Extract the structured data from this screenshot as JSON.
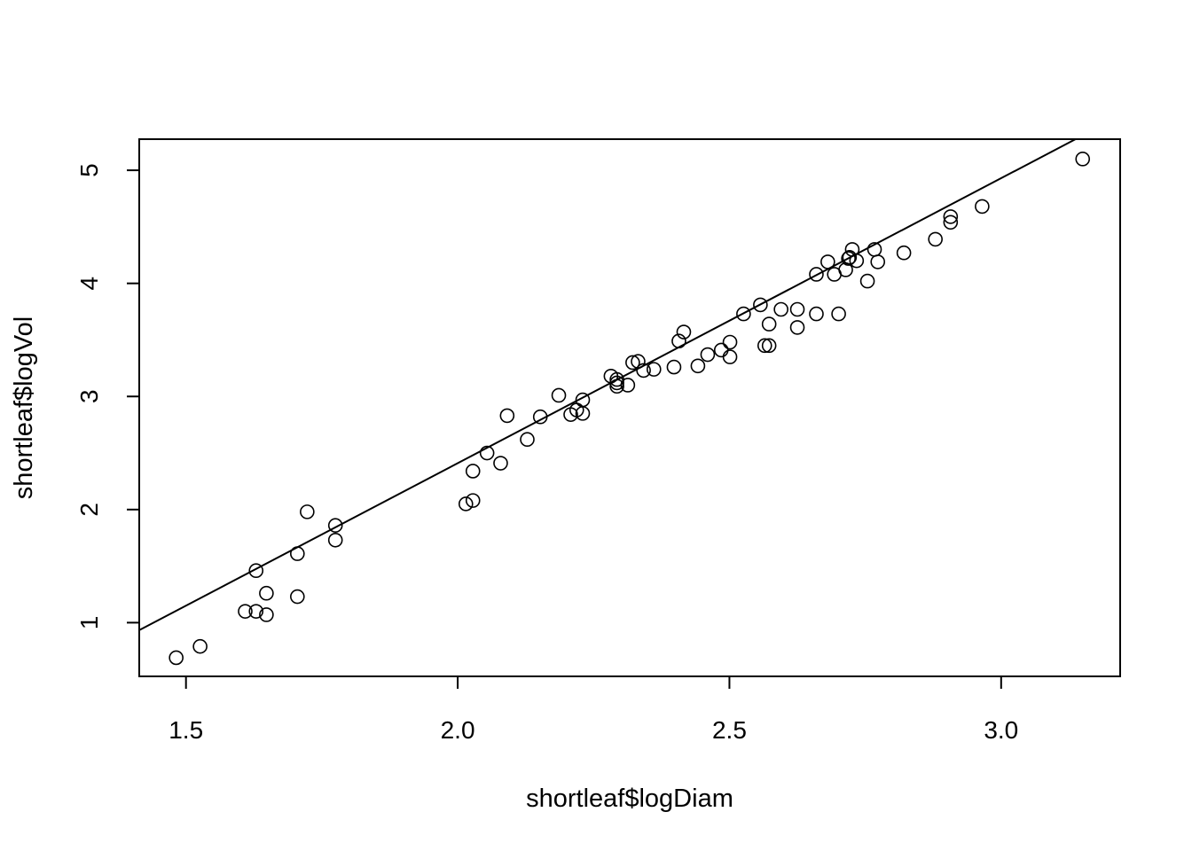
{
  "chart_data": {
    "type": "scatter",
    "xlabel": "shortleaf$logDiam",
    "ylabel": "shortleaf$logVol",
    "xlim": [
      1.414,
      3.219
    ],
    "ylim": [
      0.525,
      5.275
    ],
    "xticks": [
      1.5,
      2.0,
      2.5,
      3.0
    ],
    "xtick_labels": [
      "1.5",
      "2.0",
      "2.5",
      "3.0"
    ],
    "yticks": [
      1,
      2,
      3,
      4,
      5
    ],
    "ytick_labels": [
      "1",
      "2",
      "3",
      "4",
      "5"
    ],
    "grid": false,
    "regression_line": {
      "intercept": -2.63,
      "slope": 2.52
    },
    "points": [
      {
        "x": 1.482,
        "y": 0.69
      },
      {
        "x": 1.526,
        "y": 0.79
      },
      {
        "x": 1.609,
        "y": 1.1
      },
      {
        "x": 1.629,
        "y": 1.1
      },
      {
        "x": 1.648,
        "y": 1.07
      },
      {
        "x": 1.629,
        "y": 1.46
      },
      {
        "x": 1.648,
        "y": 1.26
      },
      {
        "x": 1.705,
        "y": 1.61
      },
      {
        "x": 1.705,
        "y": 1.23
      },
      {
        "x": 1.723,
        "y": 1.98
      },
      {
        "x": 1.775,
        "y": 1.86
      },
      {
        "x": 1.775,
        "y": 1.73
      },
      {
        "x": 2.015,
        "y": 2.05
      },
      {
        "x": 2.028,
        "y": 2.08
      },
      {
        "x": 2.028,
        "y": 2.34
      },
      {
        "x": 2.054,
        "y": 2.5
      },
      {
        "x": 2.079,
        "y": 2.41
      },
      {
        "x": 2.091,
        "y": 2.83
      },
      {
        "x": 2.128,
        "y": 2.62
      },
      {
        "x": 2.152,
        "y": 2.82
      },
      {
        "x": 2.186,
        "y": 3.01
      },
      {
        "x": 2.208,
        "y": 2.84
      },
      {
        "x": 2.219,
        "y": 2.88
      },
      {
        "x": 2.23,
        "y": 2.85
      },
      {
        "x": 2.23,
        "y": 2.97
      },
      {
        "x": 2.282,
        "y": 3.18
      },
      {
        "x": 2.293,
        "y": 3.15
      },
      {
        "x": 2.293,
        "y": 3.12
      },
      {
        "x": 2.293,
        "y": 3.09
      },
      {
        "x": 2.313,
        "y": 3.1
      },
      {
        "x": 2.322,
        "y": 3.3
      },
      {
        "x": 2.332,
        "y": 3.31
      },
      {
        "x": 2.342,
        "y": 3.23
      },
      {
        "x": 2.361,
        "y": 3.24
      },
      {
        "x": 2.398,
        "y": 3.26
      },
      {
        "x": 2.407,
        "y": 3.49
      },
      {
        "x": 2.416,
        "y": 3.57
      },
      {
        "x": 2.442,
        "y": 3.27
      },
      {
        "x": 2.46,
        "y": 3.37
      },
      {
        "x": 2.485,
        "y": 3.41
      },
      {
        "x": 2.501,
        "y": 3.48
      },
      {
        "x": 2.501,
        "y": 3.35
      },
      {
        "x": 2.526,
        "y": 3.73
      },
      {
        "x": 2.557,
        "y": 3.81
      },
      {
        "x": 2.565,
        "y": 3.45
      },
      {
        "x": 2.573,
        "y": 3.45
      },
      {
        "x": 2.573,
        "y": 3.64
      },
      {
        "x": 2.595,
        "y": 3.77
      },
      {
        "x": 2.625,
        "y": 3.77
      },
      {
        "x": 2.625,
        "y": 3.61
      },
      {
        "x": 2.66,
        "y": 3.73
      },
      {
        "x": 2.66,
        "y": 4.08
      },
      {
        "x": 2.681,
        "y": 4.19
      },
      {
        "x": 2.693,
        "y": 4.08
      },
      {
        "x": 2.701,
        "y": 3.73
      },
      {
        "x": 2.714,
        "y": 4.12
      },
      {
        "x": 2.719,
        "y": 4.22
      },
      {
        "x": 2.721,
        "y": 4.23
      },
      {
        "x": 2.726,
        "y": 4.3
      },
      {
        "x": 2.734,
        "y": 4.2
      },
      {
        "x": 2.754,
        "y": 4.02
      },
      {
        "x": 2.767,
        "y": 4.3
      },
      {
        "x": 2.773,
        "y": 4.19
      },
      {
        "x": 2.821,
        "y": 4.27
      },
      {
        "x": 2.879,
        "y": 4.39
      },
      {
        "x": 2.907,
        "y": 4.54
      },
      {
        "x": 2.907,
        "y": 4.59
      },
      {
        "x": 2.965,
        "y": 4.68
      },
      {
        "x": 3.15,
        "y": 5.1
      }
    ]
  }
}
